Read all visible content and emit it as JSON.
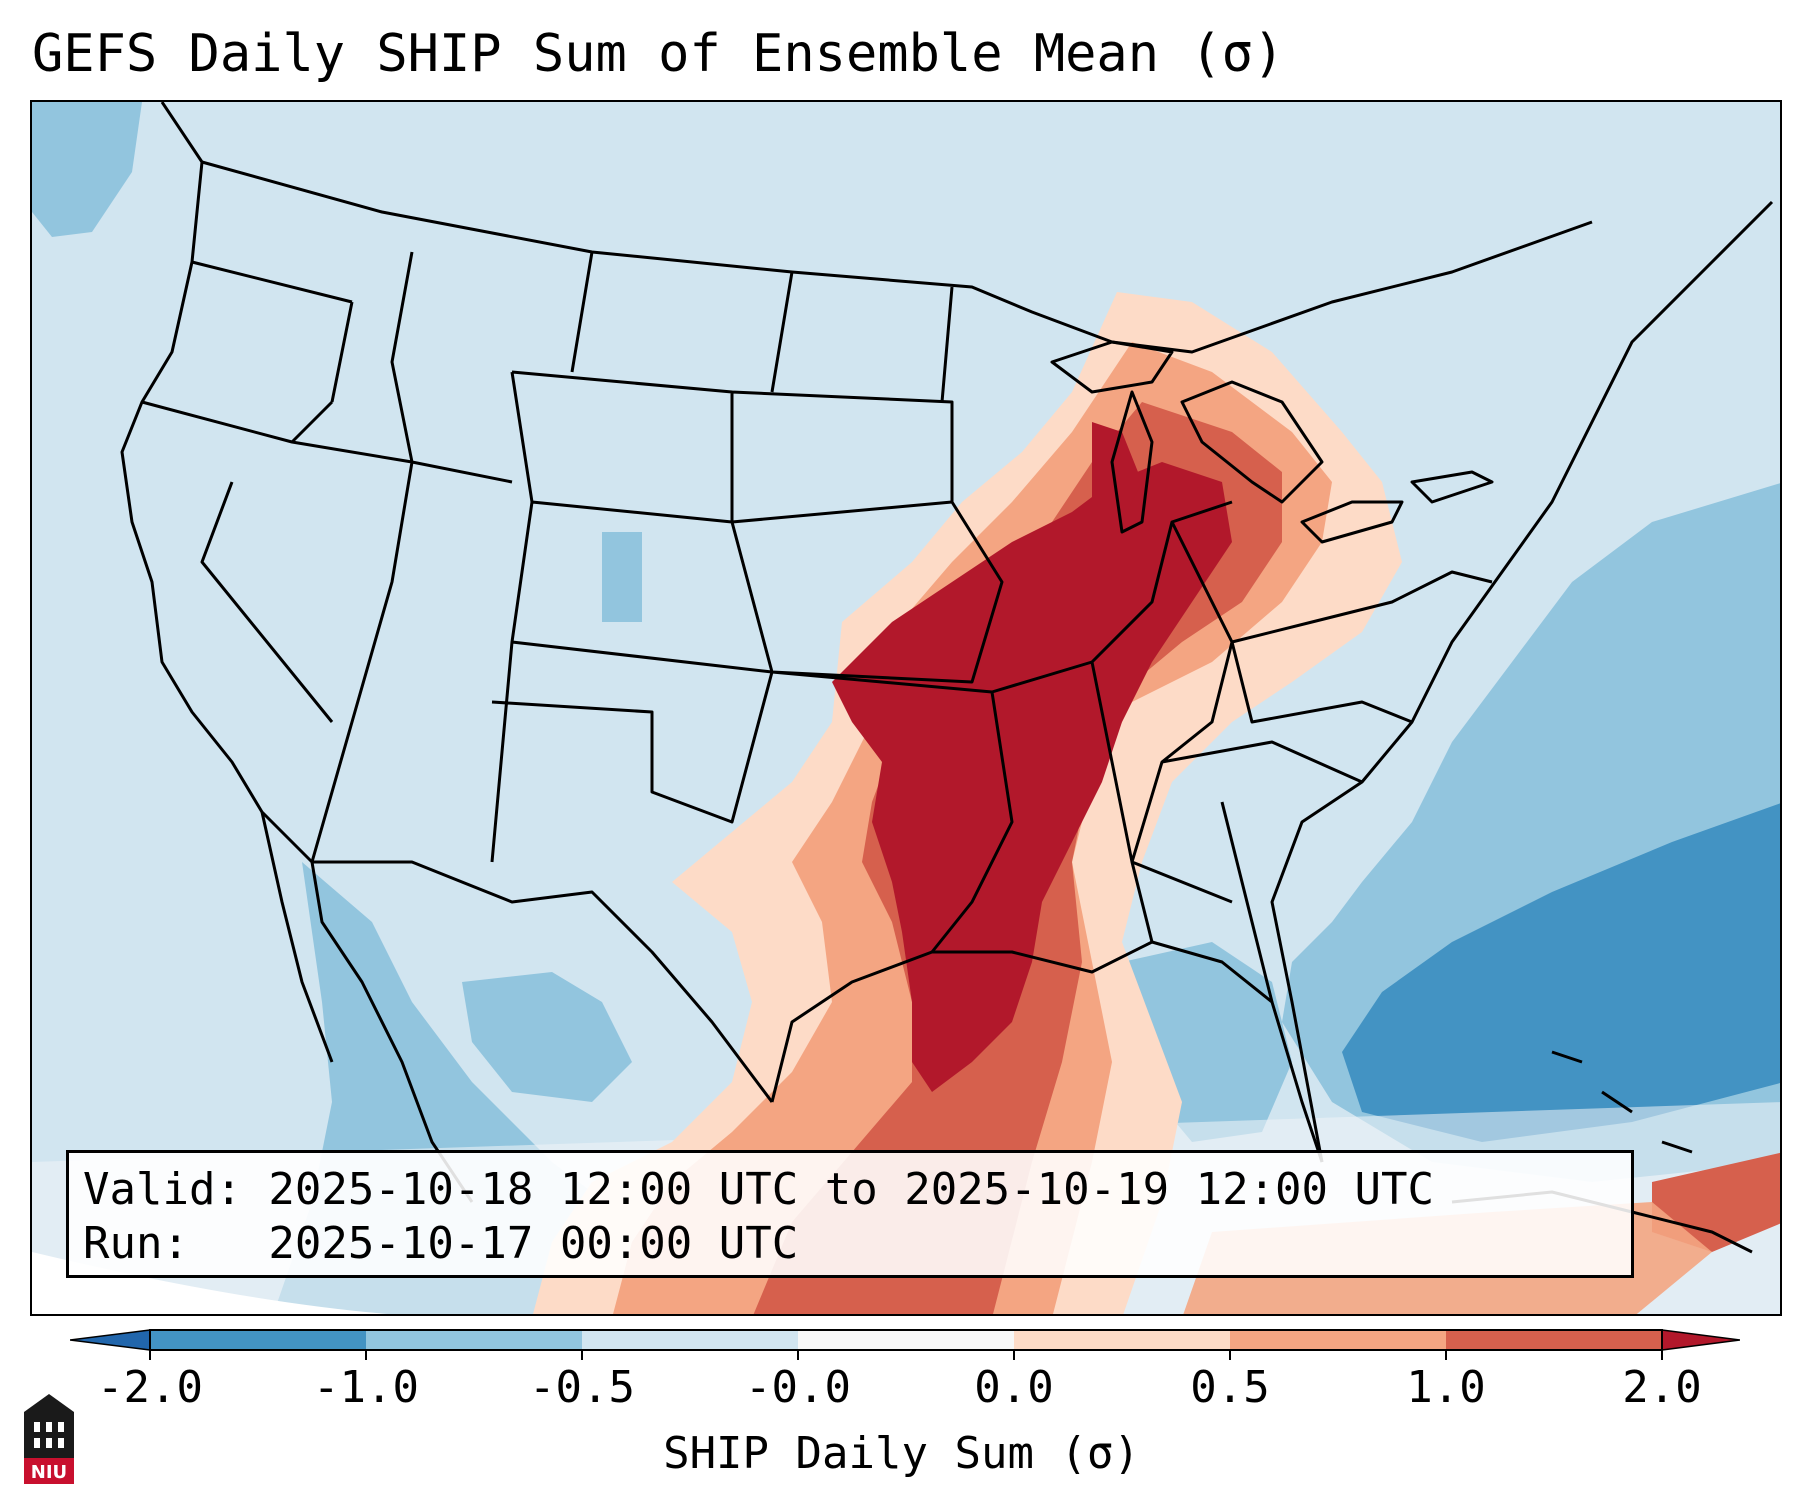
{
  "title": "GEFS Daily SHIP Sum of Ensemble Mean (σ)",
  "info": {
    "valid_line": "Valid: 2025-10-18 12:00 UTC to 2025-10-19 12:00 UTC",
    "run_line": "Run:   2025-10-17 00:00 UTC"
  },
  "colorbar": {
    "label": "SHIP Daily Sum (σ)",
    "ticks": [
      "-2.0",
      "-1.0",
      "-0.5",
      "-0.0",
      "0.0",
      "0.5",
      "1.0",
      "2.0"
    ],
    "bins": [
      {
        "range": "< -2.0",
        "color": "#2166ac"
      },
      {
        "range": "-2.0 to -1.0",
        "color": "#4393c3"
      },
      {
        "range": "-1.0 to -0.5",
        "color": "#92c5de"
      },
      {
        "range": "-0.5 to 0.0",
        "color": "#d1e5f0"
      },
      {
        "range": "0.0",
        "color": "#f7f7f7"
      },
      {
        "range": "0.0 to 0.5",
        "color": "#fddbc7"
      },
      {
        "range": "0.5 to 1.0",
        "color": "#f4a582"
      },
      {
        "range": "1.0 to 2.0",
        "color": "#d6604d"
      },
      {
        "range": "> 2.0",
        "color": "#b2182b"
      }
    ]
  },
  "logo": {
    "text": "NIU",
    "color": "#c8102e"
  },
  "map": {
    "region": "Continental United States",
    "projection": "Lambert Conformal",
    "highlight": "Strongest positive anomaly (> 2.0 σ) over the Mississippi Valley; strongest negative anomaly (< -1.0 σ) over the western Atlantic"
  }
}
